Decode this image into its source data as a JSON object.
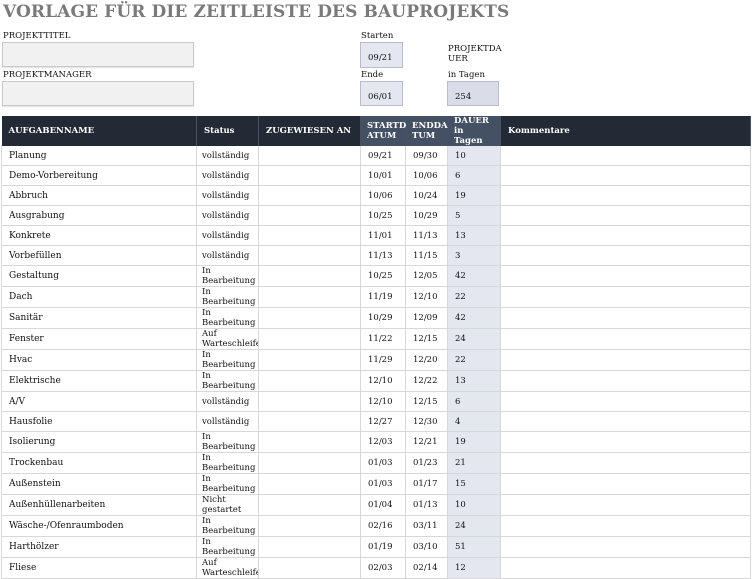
{
  "page_title": "VORLAGE FÜR DIE ZEITLEISTE DES BAUPROJEKTS",
  "fields": {
    "project_title_label": "PROJEKTTITEL",
    "project_title_value": "",
    "project_manager_label": "PROJEKTMANAGER",
    "project_manager_value": "",
    "start_label": "Starten",
    "start_value": "09/21",
    "end_label": "Ende",
    "end_value": "06/01",
    "duration_label_line1": "PROJEKTDA",
    "duration_label_line2": "UER",
    "duration_label_line3": "in Tagen",
    "duration_value": "254"
  },
  "table": {
    "headers": {
      "task": "AUFGABENNAME",
      "status": "Status",
      "assigned": "ZUGEWIESEN AN",
      "start_line1": "STARTD",
      "start_line2": "ATUM",
      "end_line1": "ENDDA",
      "end_line2": "TUM",
      "duration_line1": "DAUER in",
      "duration_line2": "Tagen",
      "comments": "Kommentare"
    },
    "rows": [
      {
        "task": "Planung",
        "status1": "vollständig",
        "status2": "",
        "assigned": "",
        "start": "09/21",
        "end": "09/30",
        "duration": "10",
        "comments": ""
      },
      {
        "task": "Demo-Vorbereitung",
        "status1": "vollständig",
        "status2": "",
        "assigned": "",
        "start": "10/01",
        "end": "10/06",
        "duration": "6",
        "comments": ""
      },
      {
        "task": "Abbruch",
        "status1": "vollständig",
        "status2": "",
        "assigned": "",
        "start": "10/06",
        "end": "10/24",
        "duration": "19",
        "comments": ""
      },
      {
        "task": "Ausgrabung",
        "status1": "vollständig",
        "status2": "",
        "assigned": "",
        "start": "10/25",
        "end": "10/29",
        "duration": "5",
        "comments": ""
      },
      {
        "task": "Konkrete",
        "status1": "vollständig",
        "status2": "",
        "assigned": "",
        "start": "11/01",
        "end": "11/13",
        "duration": "13",
        "comments": ""
      },
      {
        "task": "Vorbefüllen",
        "status1": "vollständig",
        "status2": "",
        "assigned": "",
        "start": "11/13",
        "end": "11/15",
        "duration": "3",
        "comments": ""
      },
      {
        "task": "Gestaltung",
        "status1": "In",
        "status2": "Bearbeitung",
        "assigned": "",
        "start": "10/25",
        "end": "12/05",
        "duration": "42",
        "comments": ""
      },
      {
        "task": "Dach",
        "status1": "In",
        "status2": "Bearbeitung",
        "assigned": "",
        "start": "11/19",
        "end": "12/10",
        "duration": "22",
        "comments": ""
      },
      {
        "task": "Sanitär",
        "status1": "In",
        "status2": "Bearbeitung",
        "assigned": "",
        "start": "10/29",
        "end": "12/09",
        "duration": "42",
        "comments": ""
      },
      {
        "task": "Fenster",
        "status1": "Auf",
        "status2": "Warteschleife",
        "assigned": "",
        "start": "11/22",
        "end": "12/15",
        "duration": "24",
        "comments": ""
      },
      {
        "task": "Hvac",
        "status1": "In",
        "status2": "Bearbeitung",
        "assigned": "",
        "start": "11/29",
        "end": "12/20",
        "duration": "22",
        "comments": ""
      },
      {
        "task": "Elektrische",
        "status1": "In",
        "status2": "Bearbeitung",
        "assigned": "",
        "start": "12/10",
        "end": "12/22",
        "duration": "13",
        "comments": ""
      },
      {
        "task": "A/V",
        "status1": "vollständig",
        "status2": "",
        "assigned": "",
        "start": "12/10",
        "end": "12/15",
        "duration": "6",
        "comments": ""
      },
      {
        "task": "Hausfolie",
        "status1": "vollständig",
        "status2": "",
        "assigned": "",
        "start": "12/27",
        "end": "12/30",
        "duration": "4",
        "comments": ""
      },
      {
        "task": "Isolierung",
        "status1": "In",
        "status2": "Bearbeitung",
        "assigned": "",
        "start": "12/03",
        "end": "12/21",
        "duration": "19",
        "comments": ""
      },
      {
        "task": "Trockenbau",
        "status1": "In",
        "status2": "Bearbeitung",
        "assigned": "",
        "start": "01/03",
        "end": "01/23",
        "duration": "21",
        "comments": ""
      },
      {
        "task": "Außenstein",
        "status1": "In",
        "status2": "Bearbeitung",
        "assigned": "",
        "start": "01/03",
        "end": "01/17",
        "duration": "15",
        "comments": ""
      },
      {
        "task": "Außenhüllenarbeiten",
        "status1": "Nicht",
        "status2": "gestartet",
        "assigned": "",
        "start": "01/04",
        "end": "01/13",
        "duration": "10",
        "comments": ""
      },
      {
        "task": "Wäsche-/Ofenraumboden",
        "status1": "In",
        "status2": "Bearbeitung",
        "assigned": "",
        "start": "02/16",
        "end": "03/11",
        "duration": "24",
        "comments": ""
      },
      {
        "task": "Harthölzer",
        "status1": "In",
        "status2": "Bearbeitung",
        "assigned": "",
        "start": "01/19",
        "end": "03/10",
        "duration": "51",
        "comments": ""
      },
      {
        "task": "Fliese",
        "status1": "Auf",
        "status2": "Warteschleife",
        "assigned": "",
        "start": "02/03",
        "end": "02/14",
        "duration": "12",
        "comments": ""
      }
    ]
  }
}
